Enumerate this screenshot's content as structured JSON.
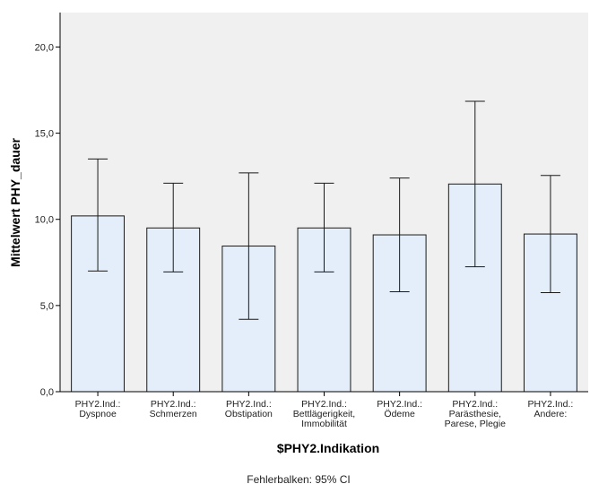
{
  "chart_data": {
    "type": "bar",
    "categories": [
      [
        "PHY2.Ind.:",
        "Dyspnoe"
      ],
      [
        "PHY2.Ind.:",
        "Schmerzen"
      ],
      [
        "PHY2.Ind.:",
        "Obstipation"
      ],
      [
        "PHY2.Ind.:",
        "Bettlägerigkeit,",
        "Immobilität"
      ],
      [
        "PHY2.Ind.:",
        "Ödeme"
      ],
      [
        "PHY2.Ind.:",
        "Parästhesie,",
        "Parese, Plegie"
      ],
      [
        "PHY2.Ind.:",
        "Andere:"
      ]
    ],
    "values": [
      10.2,
      9.5,
      8.45,
      9.5,
      9.1,
      12.05,
      9.15
    ],
    "ci_low": [
      7.0,
      6.95,
      4.2,
      6.95,
      5.8,
      7.25,
      5.75
    ],
    "ci_high": [
      13.5,
      12.1,
      12.7,
      12.1,
      12.4,
      16.85,
      12.55
    ],
    "ylim": [
      0,
      22
    ],
    "yticks": [
      0,
      5,
      10,
      15,
      20
    ],
    "ytick_labels": [
      "0,0",
      "5,0",
      "10,0",
      "15,0",
      "20,0"
    ],
    "xlabel": "$PHY2.Indikation",
    "ylabel": "Mittelwert PHY_dauer",
    "footnote": "Fehlerbalken: 95% CI",
    "colors": {
      "bar_fill": "#e3eefa",
      "bar_stroke": "#1a1a1a",
      "plot_background": "#f0f0f0",
      "errorbar": "#1a1a1a"
    }
  }
}
